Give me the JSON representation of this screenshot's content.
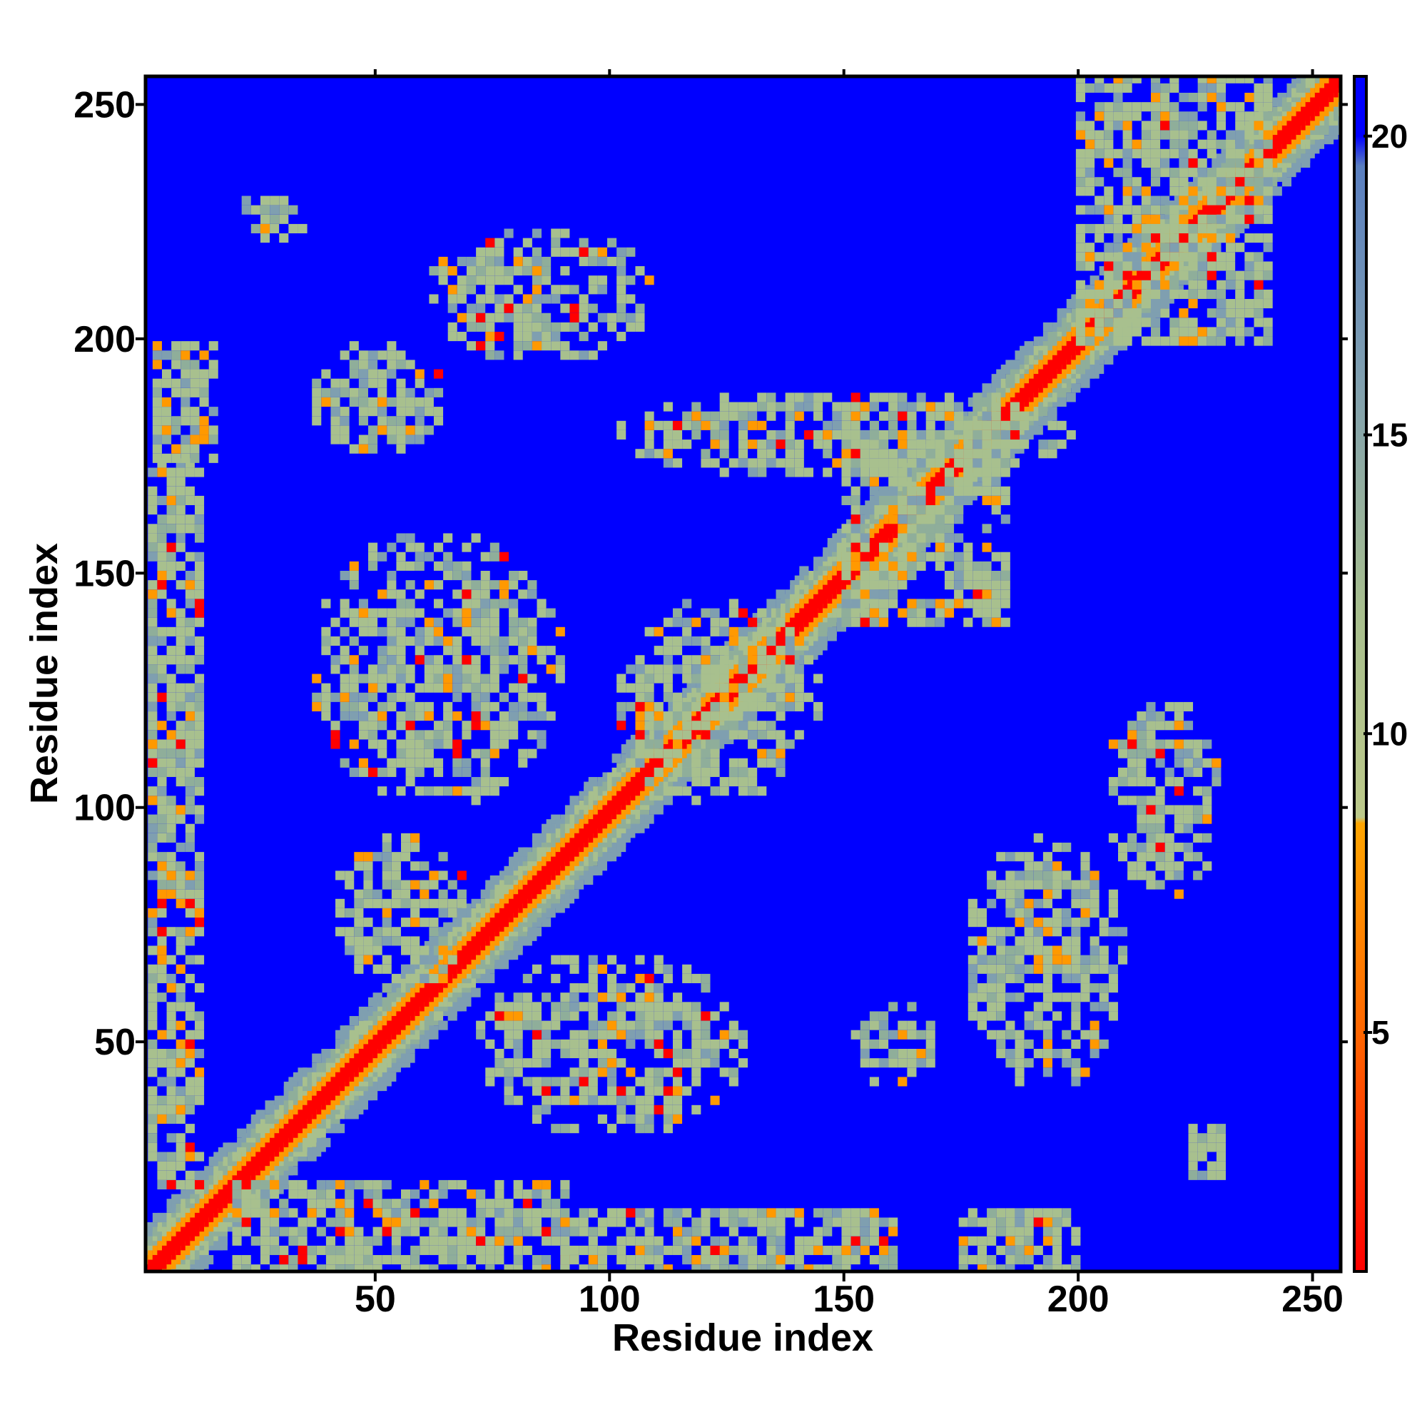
{
  "chart_data": {
    "type": "heatmap",
    "title": "",
    "xlabel": "Residue index",
    "ylabel": "Residue index",
    "xlim": [
      1,
      256
    ],
    "ylim": [
      1,
      256
    ],
    "xticks": [
      50,
      100,
      150,
      200,
      250
    ],
    "yticks": [
      50,
      100,
      150,
      200,
      250
    ],
    "xtick_labels": [
      "50",
      "100",
      "150",
      "200",
      "250"
    ],
    "ytick_labels": [
      "50",
      "100",
      "150",
      "200",
      "250"
    ],
    "colorbar": {
      "range": [
        1,
        21
      ],
      "ticks": [
        5,
        10,
        15,
        20
      ],
      "tick_labels": [
        "5",
        "10",
        "15",
        "20"
      ],
      "stops": [
        {
          "value": 1,
          "color": "#ff0000"
        },
        {
          "value": 5,
          "color": "#ff6600"
        },
        {
          "value": 8.5,
          "color": "#ffa500"
        },
        {
          "value": 8.6,
          "color": "#bcc98a"
        },
        {
          "value": 12,
          "color": "#a8bf8e"
        },
        {
          "value": 16,
          "color": "#7f9fb0"
        },
        {
          "value": 19.5,
          "color": "#5a7fc0"
        },
        {
          "value": 20,
          "color": "#0000ff"
        },
        {
          "value": 21,
          "color": "#0000ff"
        }
      ]
    },
    "background_color": "#0000ff",
    "contact_color": "#a8c08e",
    "close_color": "#ff9900",
    "diagonal_color": "#ff0000",
    "contact_regions": [
      {
        "x": [
          0,
          256
        ],
        "y": [
          0,
          256
        ],
        "kind": "diagonal"
      },
      {
        "x": [
          20,
          90
        ],
        "y": [
          2,
          20
        ],
        "kind": "band"
      },
      {
        "x": [
          90,
          160
        ],
        "y": [
          2,
          15
        ],
        "kind": "band"
      },
      {
        "x": [
          175,
          200
        ],
        "y": [
          2,
          15
        ],
        "kind": "band"
      },
      {
        "x": [
          2,
          12
        ],
        "y": [
          20,
          175
        ],
        "kind": "band"
      },
      {
        "x": [
          3,
          15
        ],
        "y": [
          175,
          200
        ],
        "kind": "band"
      },
      {
        "x": [
          20,
          35
        ],
        "y": [
          220,
          232
        ],
        "kind": "patch"
      },
      {
        "x": [
          35,
          65
        ],
        "y": [
          175,
          200
        ],
        "kind": "patch"
      },
      {
        "x": [
          60,
          110
        ],
        "y": [
          195,
          225
        ],
        "kind": "patch"
      },
      {
        "x": [
          100,
          200
        ],
        "y": [
          170,
          190
        ],
        "kind": "patch"
      },
      {
        "x": [
          150,
          185
        ],
        "y": [
          140,
          180
        ],
        "kind": "cross"
      },
      {
        "x": [
          100,
          145
        ],
        "y": [
          100,
          145
        ],
        "kind": "patch"
      },
      {
        "x": [
          35,
          90
        ],
        "y": [
          100,
          160
        ],
        "kind": "patch"
      },
      {
        "x": [
          40,
          70
        ],
        "y": [
          60,
          95
        ],
        "kind": "patch"
      },
      {
        "x": [
          70,
          130
        ],
        "y": [
          30,
          70
        ],
        "kind": "patch"
      },
      {
        "x": [
          150,
          170
        ],
        "y": [
          40,
          60
        ],
        "kind": "patch"
      },
      {
        "x": [
          175,
          210
        ],
        "y": [
          40,
          95
        ],
        "kind": "patch"
      },
      {
        "x": [
          205,
          230
        ],
        "y": [
          80,
          125
        ],
        "kind": "patch"
      },
      {
        "x": [
          222,
          232
        ],
        "y": [
          20,
          35
        ],
        "kind": "patch"
      },
      {
        "x": [
          200,
          240
        ],
        "y": [
          200,
          256
        ],
        "kind": "band"
      }
    ]
  }
}
